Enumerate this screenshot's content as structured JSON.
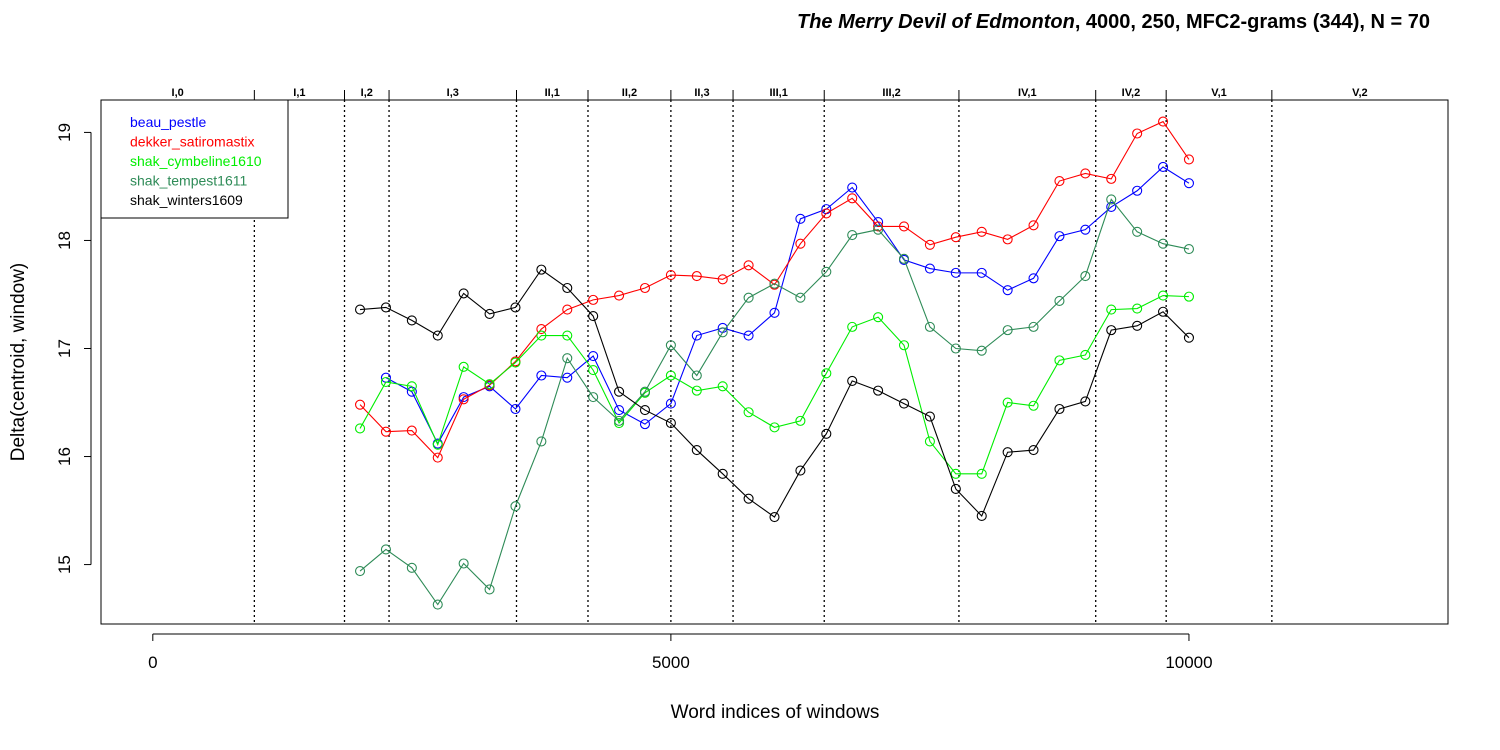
{
  "chart_data": {
    "type": "line",
    "title": {
      "italic": "The Merry Devil of Edmonton",
      "rest": ", 4000, 250, MFC2-grams (344), N = 70"
    },
    "xlabel": "Word indices of windows",
    "ylabel": "Delta(centroid, window)",
    "xlim": [
      -500,
      12500
    ],
    "ylim": [
      14.45,
      19.3
    ],
    "xticks": [
      0,
      5000,
      10000
    ],
    "yticks": [
      15,
      16,
      17,
      18,
      19
    ],
    "grid": false,
    "legend_position": "top-left",
    "x": [
      2000,
      2250,
      2500,
      2750,
      3000,
      3250,
      3500,
      3750,
      4000,
      4250,
      4500,
      4750,
      5000,
      5250,
      5500,
      5750,
      6000,
      6250,
      6500,
      6750,
      7000,
      7250,
      7500,
      7750,
      8000,
      8250,
      8500,
      8750,
      9000,
      9250,
      9500,
      9750,
      10000
    ],
    "series": [
      {
        "name": "beau_pestle",
        "color": "#0000ff",
        "values": [
          null,
          16.73,
          16.6,
          16.12,
          16.55,
          16.65,
          16.44,
          16.75,
          16.73,
          16.93,
          16.43,
          16.3,
          16.49,
          17.12,
          17.19,
          17.12,
          17.33,
          18.2,
          18.29,
          18.49,
          18.17,
          17.82,
          17.74,
          17.7,
          17.7,
          17.54,
          17.65,
          18.04,
          18.1,
          18.31,
          18.46,
          18.68,
          18.53
        ]
      },
      {
        "name": "dekker_satiromastix",
        "color": "#ff0000",
        "values": [
          16.48,
          16.23,
          16.24,
          15.99,
          16.53,
          16.66,
          16.88,
          17.18,
          17.36,
          17.45,
          17.49,
          17.56,
          17.68,
          17.67,
          17.64,
          17.77,
          17.59,
          17.97,
          18.25,
          18.39,
          18.13,
          18.13,
          17.96,
          18.03,
          18.08,
          18.01,
          18.14,
          18.55,
          18.62,
          18.57,
          18.99,
          19.1,
          18.75
        ]
      },
      {
        "name": "shak_cymbeline1610",
        "color": "#00ee00",
        "values": [
          16.26,
          16.69,
          16.65,
          16.11,
          16.83,
          16.67,
          16.87,
          17.12,
          17.12,
          16.8,
          16.31,
          16.59,
          16.75,
          16.61,
          16.65,
          16.41,
          16.27,
          16.33,
          16.77,
          17.2,
          17.29,
          17.03,
          16.14,
          15.84,
          15.84,
          16.5,
          16.47,
          16.89,
          16.94,
          17.36,
          17.37,
          17.49,
          17.48
        ]
      },
      {
        "name": "shak_tempest1611",
        "color": "#2e8b57",
        "values": [
          14.94,
          15.14,
          14.97,
          14.63,
          15.01,
          14.77,
          15.54,
          16.14,
          16.91,
          16.55,
          16.33,
          16.6,
          17.03,
          16.75,
          17.15,
          17.47,
          17.6,
          17.47,
          17.71,
          18.05,
          18.1,
          17.83,
          17.2,
          17.0,
          16.98,
          17.17,
          17.2,
          17.44,
          17.67,
          18.38,
          18.08,
          17.97,
          17.92
        ]
      },
      {
        "name": "shak_winters1609",
        "color": "#000000",
        "values": [
          17.36,
          17.38,
          17.26,
          17.12,
          17.51,
          17.32,
          17.38,
          17.73,
          17.56,
          17.3,
          16.6,
          16.43,
          16.31,
          16.06,
          15.84,
          15.61,
          15.44,
          15.87,
          16.21,
          16.7,
          16.61,
          16.49,
          16.37,
          15.7,
          15.45,
          16.04,
          16.06,
          16.44,
          16.51,
          17.17,
          17.21,
          17.34,
          17.1
        ]
      }
    ],
    "act_scene_labels": [
      {
        "label": "I,0"
      },
      {
        "label": "I,1"
      },
      {
        "label": "I,2"
      },
      {
        "label": "I,3"
      },
      {
        "label": "II,1"
      },
      {
        "label": "II,2"
      },
      {
        "label": "II,3"
      },
      {
        "label": "III,1"
      },
      {
        "label": "III,2"
      },
      {
        "label": "IV,1"
      },
      {
        "label": "IV,2"
      },
      {
        "label": "V,1"
      },
      {
        "label": "V,2"
      }
    ],
    "scene_boundaries": [
      980,
      1850,
      2280,
      3510,
      4200,
      5000,
      5600,
      6480,
      7780,
      9100,
      9780,
      10800
    ]
  }
}
